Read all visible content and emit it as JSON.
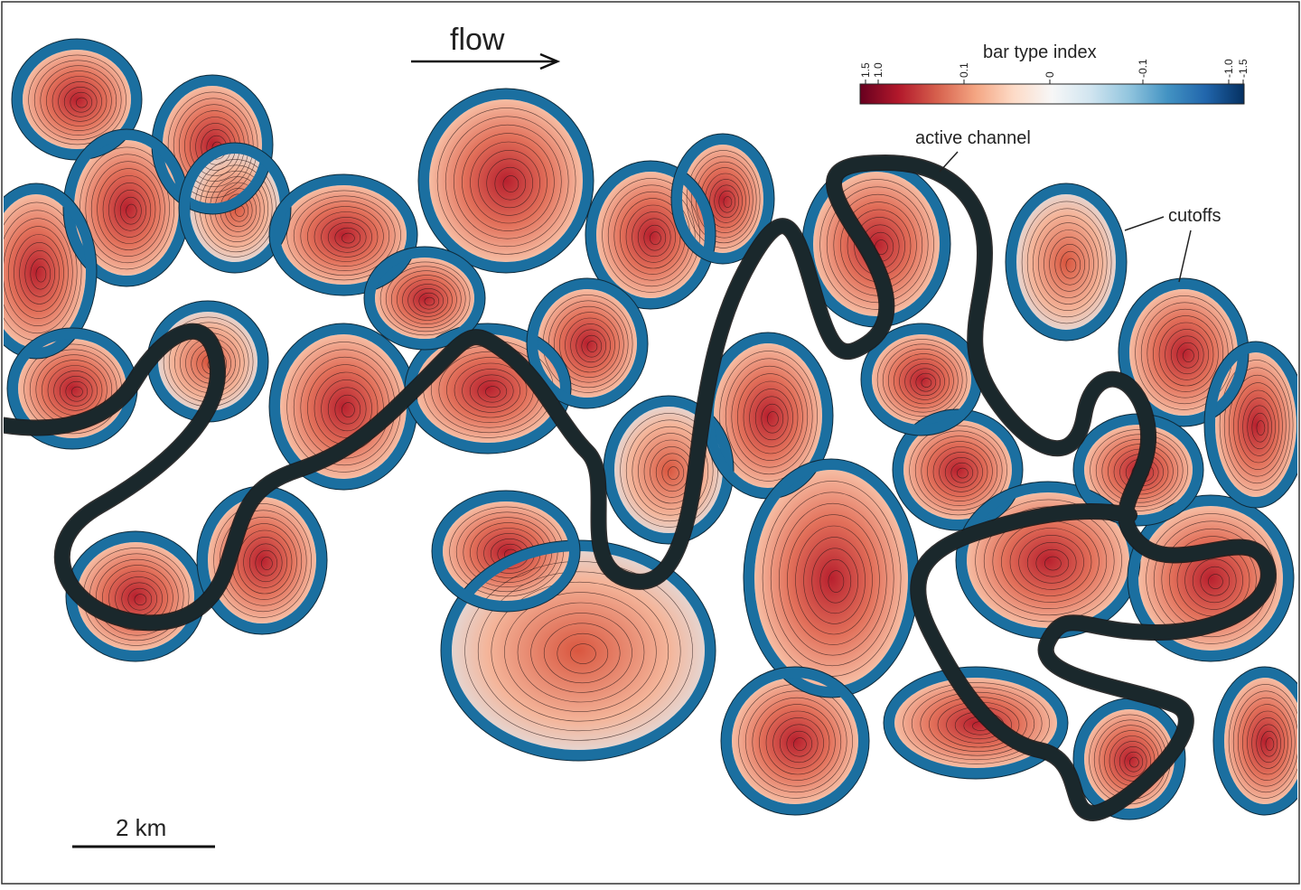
{
  "flow_label": "flow",
  "colorbar": {
    "title": "bar type index",
    "ticks": [
      {
        "label": "1.5",
        "value": 1.5
      },
      {
        "label": "1.0",
        "value": 1.0
      },
      {
        "label": "0.1",
        "value": 0.1
      },
      {
        "label": "0",
        "value": 0
      },
      {
        "label": "-0.1",
        "value": -0.1
      },
      {
        "label": "-1.0",
        "value": -1.0
      },
      {
        "label": "-1.5",
        "value": -1.5
      }
    ],
    "colors": [
      "#67001f",
      "#b2182b",
      "#d6604d",
      "#f4a582",
      "#fddbc7",
      "#f7f7f7",
      "#d1e5f0",
      "#92c5de",
      "#4393c3",
      "#2166ac",
      "#053061"
    ]
  },
  "annotations": {
    "active_channel": "active channel",
    "cutoffs": "cutoffs"
  },
  "scale_bar": {
    "label": "2 km"
  },
  "colors": {
    "cutoff_channel": "#1b6fa0",
    "active_channel": "#27a9d4",
    "bar_red": "#d24a3a",
    "bar_light": "#f5b9a0"
  }
}
